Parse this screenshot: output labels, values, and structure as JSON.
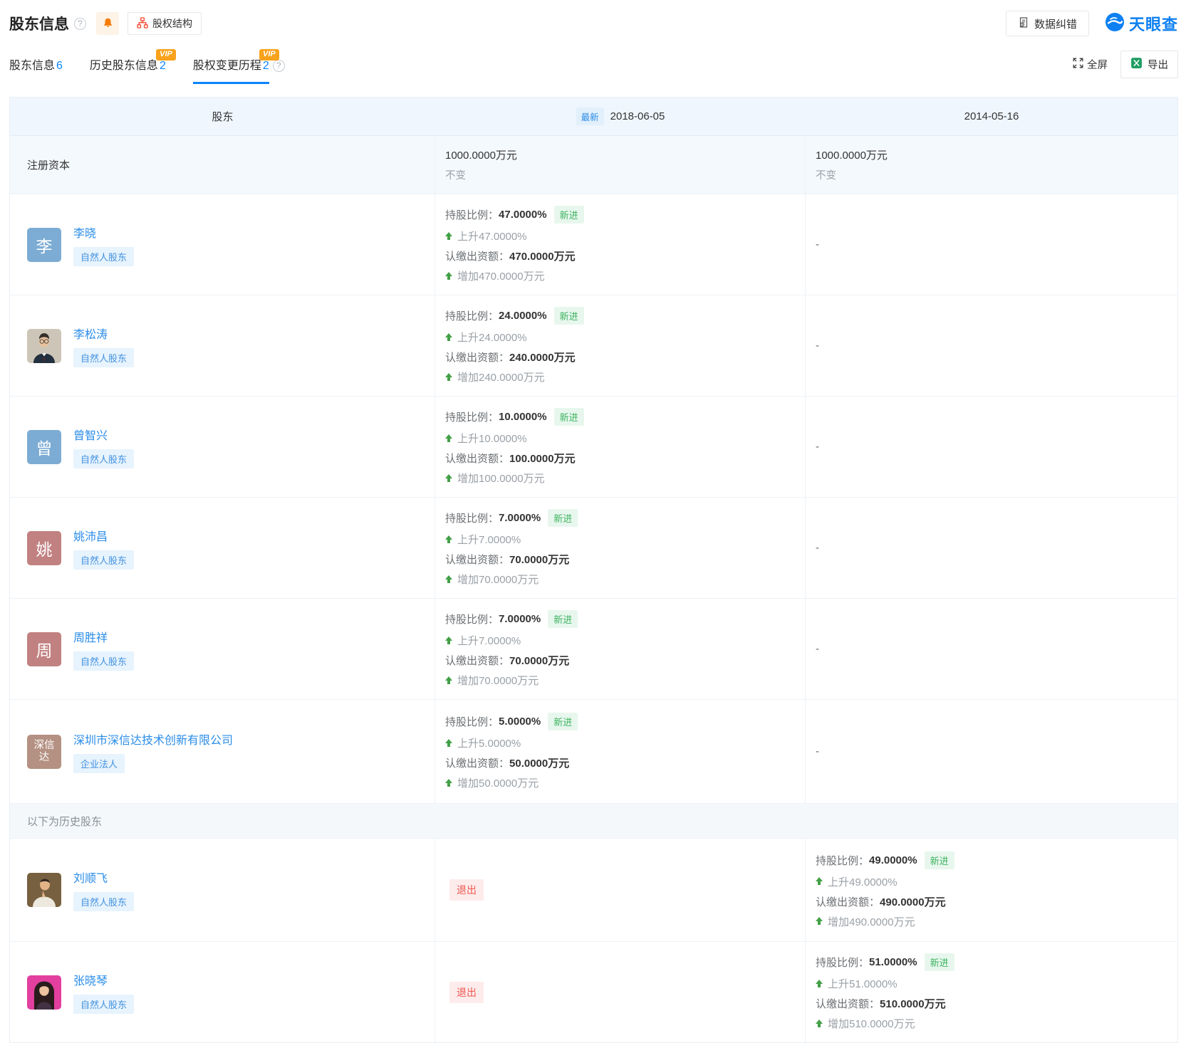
{
  "header": {
    "title": "股东信息",
    "help_icon": "?",
    "structure_button": "股权结构",
    "correction_button": "数据纠错",
    "brand": "天眼查",
    "fullscreen": "全屏",
    "export": "导出",
    "vip": "VIP",
    "tabs": [
      {
        "label": "股东信息",
        "count": "6"
      },
      {
        "label": "历史股东信息",
        "count": "2"
      },
      {
        "label": "股权变更历程",
        "count": "2"
      }
    ]
  },
  "table": {
    "headers": {
      "shareholder": "股东",
      "latest_badge": "最新",
      "latest_date": "2018-06-05",
      "prev_date": "2014-05-16"
    },
    "capital": {
      "label": "注册资本",
      "latest_value": "1000.0000万元",
      "latest_change": "不变",
      "prev_value": "1000.0000万元",
      "prev_change": "不变"
    },
    "labels": {
      "ratio": "持股比例：",
      "amount": "认缴出资额：",
      "new": "新进",
      "exit": "退出",
      "dash": "-",
      "history_divider": "以下为历史股东"
    },
    "rows": [
      {
        "name": "李晓",
        "tag": "自然人股东",
        "avatar": {
          "type": "letter",
          "lines": [
            "李"
          ],
          "color": "#7cacd3"
        },
        "latest": {
          "ratio": "47.0000%",
          "ratio_change": "上升47.0000%",
          "amount": "470.0000万元",
          "amount_change": "增加470.0000万元"
        },
        "prev": "-"
      },
      {
        "name": "李松涛",
        "tag": "自然人股东",
        "avatar": {
          "type": "photo",
          "photo": "man-suit"
        },
        "latest": {
          "ratio": "24.0000%",
          "ratio_change": "上升24.0000%",
          "amount": "240.0000万元",
          "amount_change": "增加240.0000万元"
        },
        "prev": "-"
      },
      {
        "name": "曾智兴",
        "tag": "自然人股东",
        "avatar": {
          "type": "letter",
          "lines": [
            "曾"
          ],
          "color": "#7cacd3"
        },
        "latest": {
          "ratio": "10.0000%",
          "ratio_change": "上升10.0000%",
          "amount": "100.0000万元",
          "amount_change": "增加100.0000万元"
        },
        "prev": "-"
      },
      {
        "name": "姚沛昌",
        "tag": "自然人股东",
        "avatar": {
          "type": "letter",
          "lines": [
            "姚"
          ],
          "color": "#c28181"
        },
        "latest": {
          "ratio": "7.0000%",
          "ratio_change": "上升7.0000%",
          "amount": "70.0000万元",
          "amount_change": "增加70.0000万元"
        },
        "prev": "-"
      },
      {
        "name": "周胜祥",
        "tag": "自然人股东",
        "avatar": {
          "type": "letter",
          "lines": [
            "周"
          ],
          "color": "#c28181"
        },
        "latest": {
          "ratio": "7.0000%",
          "ratio_change": "上升7.0000%",
          "amount": "70.0000万元",
          "amount_change": "增加70.0000万元"
        },
        "prev": "-"
      },
      {
        "name": "深圳市深信达技术创新有限公司",
        "tag": "企业法人",
        "avatar": {
          "type": "letter",
          "lines": [
            "深信",
            "达"
          ],
          "color": "#b49182"
        },
        "latest": {
          "ratio": "5.0000%",
          "ratio_change": "上升5.0000%",
          "amount": "50.0000万元",
          "amount_change": "增加50.0000万元"
        },
        "prev": "-"
      }
    ],
    "history_rows": [
      {
        "name": "刘顺飞",
        "tag": "自然人股东",
        "status": "退出",
        "avatar": {
          "type": "photo",
          "photo": "man-casual"
        },
        "prev": {
          "ratio": "49.0000%",
          "ratio_change": "上升49.0000%",
          "amount": "490.0000万元",
          "amount_change": "增加490.0000万元"
        }
      },
      {
        "name": "张晓琴",
        "tag": "自然人股东",
        "status": "退出",
        "avatar": {
          "type": "photo",
          "photo": "woman"
        },
        "prev": {
          "ratio": "51.0000%",
          "ratio_change": "上升51.0000%",
          "amount": "510.0000万元",
          "amount_change": "增加510.0000万元"
        }
      }
    ]
  },
  "icons": {
    "help-icon": "?",
    "bell-icon": "bell",
    "org-chart-icon": "org-chart",
    "document-edit-icon": "document",
    "tianyancha-logo-icon": "blue-swirl-circle",
    "fullscreen-icon": "expand-arrows",
    "excel-icon": "green-excel",
    "up-arrow-icon": "green-up-arrow"
  },
  "colors": {
    "brand_blue": "#0d80f2",
    "link_blue": "#2a8ce8",
    "tab_accent": "#0a84ff",
    "tag_bg": "#e7f3fd",
    "tag_text": "#4191e0",
    "new_badge_bg": "#e8f7ee",
    "new_badge_text": "#3db35f",
    "exit_badge_bg": "#fdeceb",
    "exit_badge_text": "#f0544f",
    "latest_badge_bg": "#e2f0fc",
    "latest_badge_text": "#2a8ce8",
    "vip_orange": "#f9a21c",
    "bell_orange": "#f77b00",
    "org_icon_red": "#f5432c",
    "excel_green": "#1f9e63",
    "up_arrow_green": "#43a047",
    "header_row_bg": "#eff6fd",
    "capital_row_bg": "#f4f9fd",
    "history_divider_bg": "#f4f8fb",
    "avatar_blue": "#7cacd3",
    "avatar_rose": "#c28181",
    "avatar_tan": "#b49182"
  }
}
